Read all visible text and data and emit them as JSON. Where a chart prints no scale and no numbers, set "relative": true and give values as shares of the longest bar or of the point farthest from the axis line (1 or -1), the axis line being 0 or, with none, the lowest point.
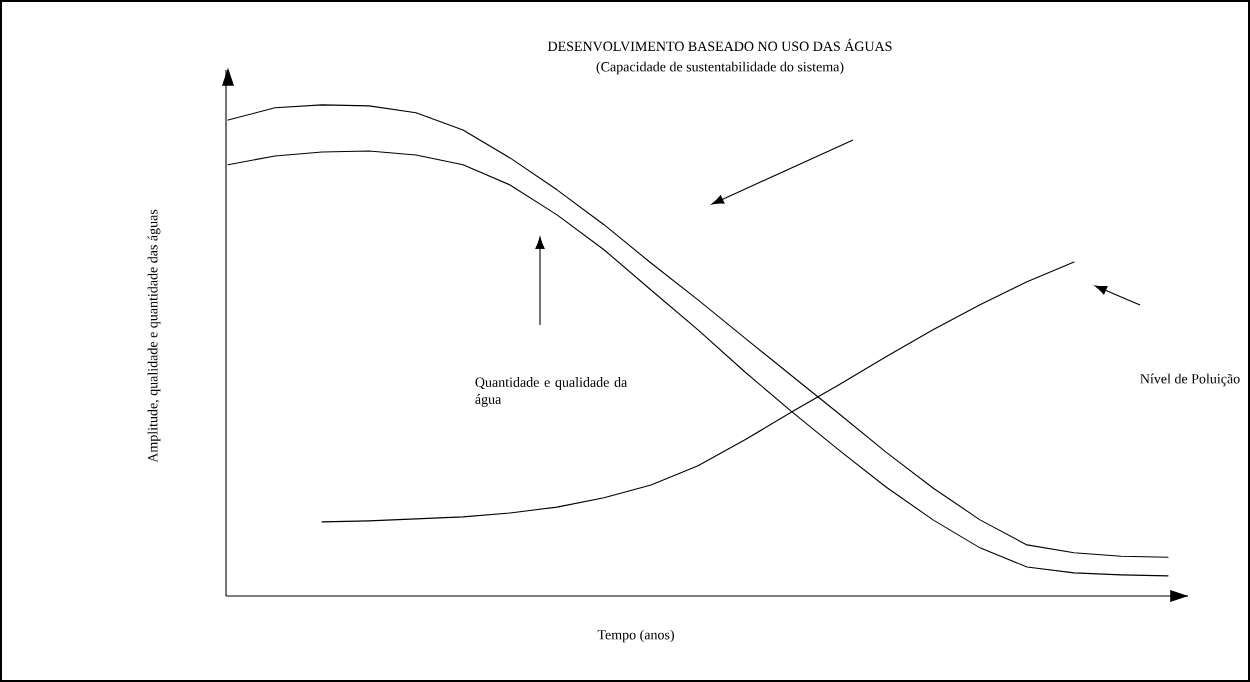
{
  "chart_data": {
    "type": "line",
    "relative": true,
    "xlabel": "Tempo (anos)",
    "ylabel": "Amplitude, qualidade e quantidade das águas",
    "categories": [
      null,
      null,
      null,
      null,
      null,
      null,
      null,
      null,
      null,
      null,
      null,
      null,
      null,
      null,
      null,
      null,
      null,
      null,
      null,
      null,
      null
    ],
    "series": [
      {
        "color": "#000000",
        "values": [
          0.969,
          0.994,
          1,
          0.998,
          0.984,
          0.949,
          0.892,
          0.827,
          0.756,
          0.678,
          0.603,
          0.525,
          0.448,
          0.371,
          0.293,
          0.22,
          0.155,
          0.104,
          0.088,
          0.081,
          0.079
        ]
      },
      {
        "color": "#000000",
        "values": [
          0.878,
          0.896,
          0.904,
          0.906,
          0.898,
          0.878,
          0.837,
          0.776,
          0.705,
          0.623,
          0.542,
          0.456,
          0.375,
          0.297,
          0.222,
          0.155,
          0.098,
          0.059,
          0.047,
          0.043,
          0.041
        ]
      },
      {
        "color": "#000000",
        "values": [
          null,
          null,
          0.151,
          0.153,
          0.157,
          0.161,
          0.169,
          0.181,
          0.2,
          0.226,
          0.265,
          0.318,
          0.375,
          0.43,
          0.487,
          0.542,
          0.593,
          0.64,
          0.68,
          null,
          null
        ]
      }
    ],
    "annotations": [
      "DESENVOLVIMENTO BASEADO NO USO DAS ÁGUAS",
      "(Capacidade de sustentabilidade do sistema)",
      "Quantidade e qualidade da água",
      "Nível de Poluição"
    ]
  }
}
